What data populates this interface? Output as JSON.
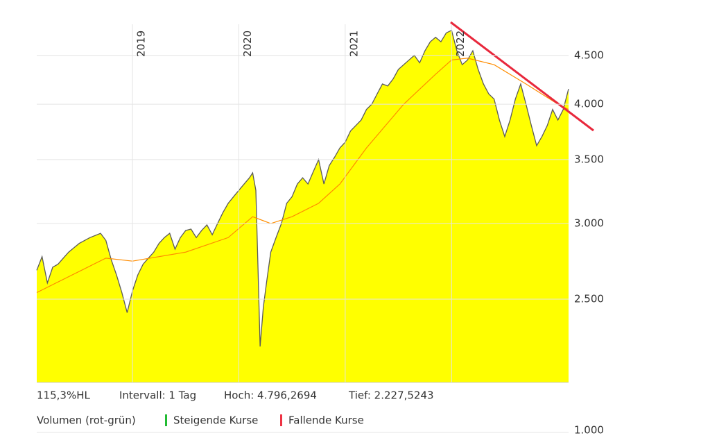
{
  "chart_data": {
    "type": "area",
    "log_y": true,
    "grid": true,
    "x": [
      2018.1,
      2018.15,
      2018.2,
      2018.25,
      2018.3,
      2018.35,
      2018.4,
      2018.45,
      2018.5,
      2018.55,
      2018.6,
      2018.7,
      2018.75,
      2018.8,
      2018.85,
      2018.9,
      2018.95,
      2019.0,
      2019.05,
      2019.1,
      2019.15,
      2019.2,
      2019.25,
      2019.3,
      2019.35,
      2019.4,
      2019.45,
      2019.5,
      2019.55,
      2019.6,
      2019.65,
      2019.7,
      2019.75,
      2019.8,
      2019.85,
      2019.9,
      2019.95,
      2020.0,
      2020.05,
      2020.1,
      2020.13,
      2020.16,
      2020.18,
      2020.2,
      2020.23,
      2020.26,
      2020.3,
      2020.35,
      2020.4,
      2020.45,
      2020.5,
      2020.55,
      2020.6,
      2020.65,
      2020.7,
      2020.75,
      2020.8,
      2020.85,
      2020.9,
      2020.95,
      2021.0,
      2021.05,
      2021.1,
      2021.15,
      2021.2,
      2021.25,
      2021.3,
      2021.35,
      2021.4,
      2021.45,
      2021.5,
      2021.55,
      2021.6,
      2021.65,
      2021.7,
      2021.75,
      2021.8,
      2021.85,
      2021.9,
      2021.95,
      2022.0,
      2022.05,
      2022.1,
      2022.15,
      2022.2,
      2022.25,
      2022.3,
      2022.35,
      2022.4,
      2022.45,
      2022.5,
      2022.55,
      2022.6,
      2022.65,
      2022.7,
      2022.75,
      2022.8,
      2022.85,
      2022.9,
      2022.95,
      2023.0,
      2023.05,
      2023.1
    ],
    "series": [
      {
        "color": "#5a5a5a",
        "fill": "#ffff00",
        "values": [
          2680,
          2770,
          2600,
          2700,
          2720,
          2760,
          2800,
          2830,
          2860,
          2880,
          2900,
          2930,
          2880,
          2750,
          2650,
          2540,
          2420,
          2550,
          2650,
          2720,
          2760,
          2800,
          2860,
          2900,
          2930,
          2820,
          2900,
          2950,
          2960,
          2900,
          2950,
          2990,
          2920,
          3000,
          3080,
          3150,
          3200,
          3250,
          3300,
          3350,
          3390,
          3250,
          2700,
          2230,
          2450,
          2600,
          2800,
          2900,
          3000,
          3150,
          3200,
          3300,
          3350,
          3300,
          3400,
          3500,
          3300,
          3450,
          3520,
          3600,
          3650,
          3750,
          3800,
          3850,
          3950,
          4000,
          4100,
          4200,
          4180,
          4250,
          4350,
          4400,
          4450,
          4500,
          4420,
          4550,
          4650,
          4700,
          4650,
          4750,
          4780,
          4550,
          4400,
          4450,
          4550,
          4350,
          4200,
          4100,
          4050,
          3850,
          3700,
          3850,
          4050,
          4200,
          4000,
          3800,
          3620,
          3700,
          3800,
          3950,
          3850,
          3950,
          4150
        ]
      },
      {
        "color": "#ff8c00",
        "x": [
          2018.1,
          2018.75,
          2019.0,
          2019.5,
          2019.9,
          2020.13,
          2020.3,
          2020.5,
          2020.75,
          2020.95,
          2021.2,
          2021.55,
          2021.85,
          2022.0,
          2022.15,
          2022.4,
          2022.7,
          2023.0,
          2023.1
        ],
        "values": [
          2540,
          2760,
          2740,
          2800,
          2900,
          3050,
          3000,
          3050,
          3150,
          3300,
          3600,
          4000,
          4300,
          4450,
          4470,
          4400,
          4200,
          4000,
          3950
        ]
      }
    ],
    "xlim": [
      2018.1,
      2023.1
    ],
    "xticks": [
      2019,
      2020,
      2021,
      2022
    ],
    "ylim": [
      2045,
      4850
    ],
    "yticks": [
      {
        "value": 2500,
        "label": "2.500"
      },
      {
        "value": 3000,
        "label": "3.000"
      },
      {
        "value": 3500,
        "label": "3.500"
      },
      {
        "value": 4000,
        "label": "4.000"
      },
      {
        "value": 4500,
        "label": "4.500"
      }
    ],
    "stats": [
      "115,3%HL",
      "Intervall: 1 Tag",
      "Hoch: 4.796,2694",
      "Tief: 2.227,5243"
    ],
    "volume_title": "Volumen (rot-grün)",
    "volume_legend": [
      {
        "label": "Steigende Kurse",
        "color": "#22bb33"
      },
      {
        "label": "Fallende Kurse",
        "color": "#ee3344"
      }
    ],
    "volume_yticks": [
      {
        "value": 1000,
        "label": "1.000"
      }
    ]
  }
}
